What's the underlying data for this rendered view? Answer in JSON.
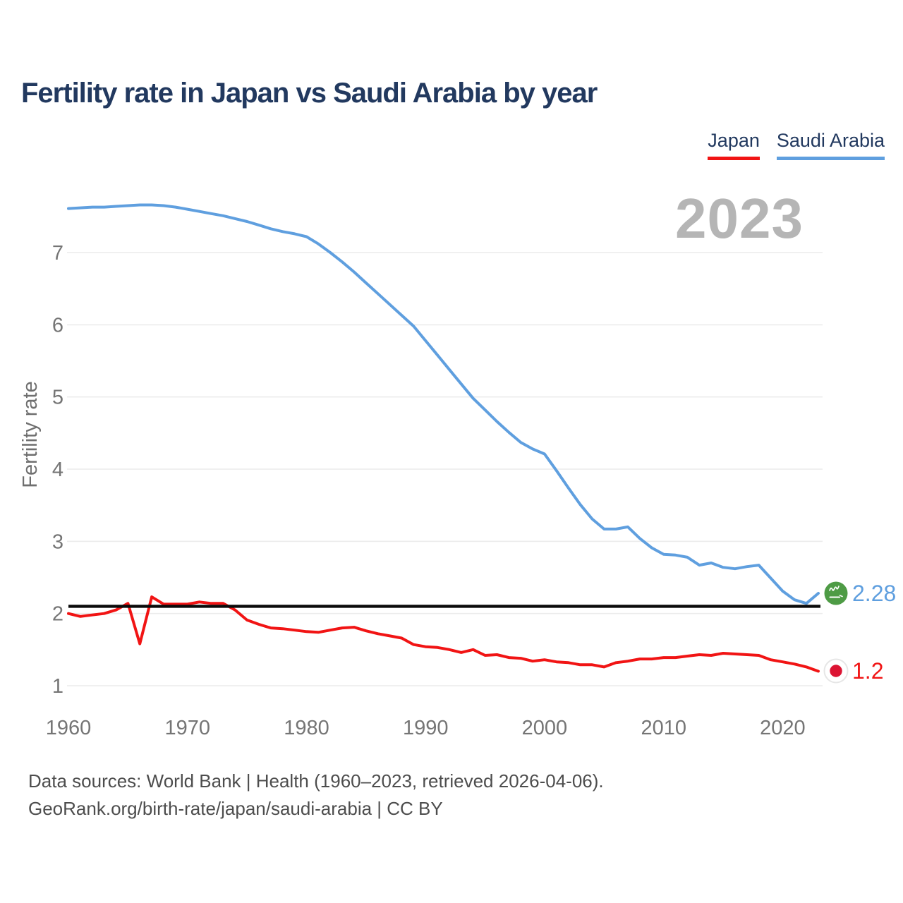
{
  "title": "Fertility rate in Japan vs Saudi Arabia by year",
  "watermark_year": "2023",
  "legend": {
    "items": [
      {
        "label": "Japan",
        "color": "#f11414"
      },
      {
        "label": "Saudi Arabia",
        "color": "#5f9fdf"
      }
    ]
  },
  "y_axis": {
    "label": "Fertility rate",
    "ticks": [
      1,
      2,
      3,
      4,
      5,
      6,
      7
    ]
  },
  "x_axis": {
    "ticks": [
      1960,
      1970,
      1980,
      1990,
      2000,
      2010,
      2020
    ]
  },
  "reference_line": {
    "value": 2.1,
    "color": "#0a0a0a"
  },
  "end_labels": {
    "saudi": {
      "series": "Saudi Arabia",
      "value": "2.28",
      "color": "#5f9fdf",
      "icon": "saudi-arabia-flag"
    },
    "japan": {
      "series": "Japan",
      "value": "1.2",
      "color": "#f11414",
      "icon": "japan-flag"
    }
  },
  "footer": {
    "line1": "Data sources: World Bank | Health (1960–2023, retrieved 2026-04-06).",
    "line2": "GeoRank.org/birth-rate/japan/saudi-arabia | CC BY"
  },
  "chart_data": {
    "type": "line",
    "title": "Fertility rate in Japan vs Saudi Arabia by year",
    "xlabel": "",
    "ylabel": "Fertility rate",
    "x_start_year": 1960,
    "x_end_year": 2023,
    "xlim": [
      1960,
      2023
    ],
    "ylim": [
      0.8,
      7.9
    ],
    "y_ticks": [
      1,
      2,
      3,
      4,
      5,
      6,
      7
    ],
    "x_ticks": [
      1960,
      1970,
      1980,
      1990,
      2000,
      2010,
      2020
    ],
    "grid": true,
    "legend_position": "top-right",
    "reference_line_y": 2.1,
    "series": [
      {
        "name": "Japan",
        "color": "#f11414",
        "end_label": "1.2",
        "values": [
          2.0,
          1.96,
          1.98,
          2.0,
          2.05,
          2.14,
          1.58,
          2.23,
          2.13,
          2.13,
          2.13,
          2.16,
          2.14,
          2.14,
          2.05,
          1.91,
          1.85,
          1.8,
          1.79,
          1.77,
          1.75,
          1.74,
          1.77,
          1.8,
          1.81,
          1.76,
          1.72,
          1.69,
          1.66,
          1.57,
          1.54,
          1.53,
          1.5,
          1.46,
          1.5,
          1.42,
          1.43,
          1.39,
          1.38,
          1.34,
          1.36,
          1.33,
          1.32,
          1.29,
          1.29,
          1.26,
          1.32,
          1.34,
          1.37,
          1.37,
          1.39,
          1.39,
          1.41,
          1.43,
          1.42,
          1.45,
          1.44,
          1.43,
          1.42,
          1.36,
          1.33,
          1.3,
          1.26,
          1.2
        ]
      },
      {
        "name": "Saudi Arabia",
        "color": "#5f9fdf",
        "end_label": "2.28",
        "values": [
          7.61,
          7.62,
          7.63,
          7.63,
          7.64,
          7.65,
          7.66,
          7.66,
          7.65,
          7.63,
          7.6,
          7.57,
          7.54,
          7.51,
          7.47,
          7.43,
          7.38,
          7.33,
          7.29,
          7.26,
          7.22,
          7.12,
          7.0,
          6.87,
          6.73,
          6.58,
          6.43,
          6.28,
          6.13,
          5.98,
          5.78,
          5.58,
          5.38,
          5.18,
          4.98,
          4.82,
          4.66,
          4.51,
          4.37,
          4.28,
          4.21,
          3.98,
          3.74,
          3.51,
          3.31,
          3.17,
          3.17,
          3.2,
          3.04,
          2.91,
          2.82,
          2.81,
          2.78,
          2.67,
          2.7,
          2.64,
          2.62,
          2.65,
          2.67,
          2.49,
          2.31,
          2.19,
          2.14,
          2.28
        ]
      }
    ]
  }
}
